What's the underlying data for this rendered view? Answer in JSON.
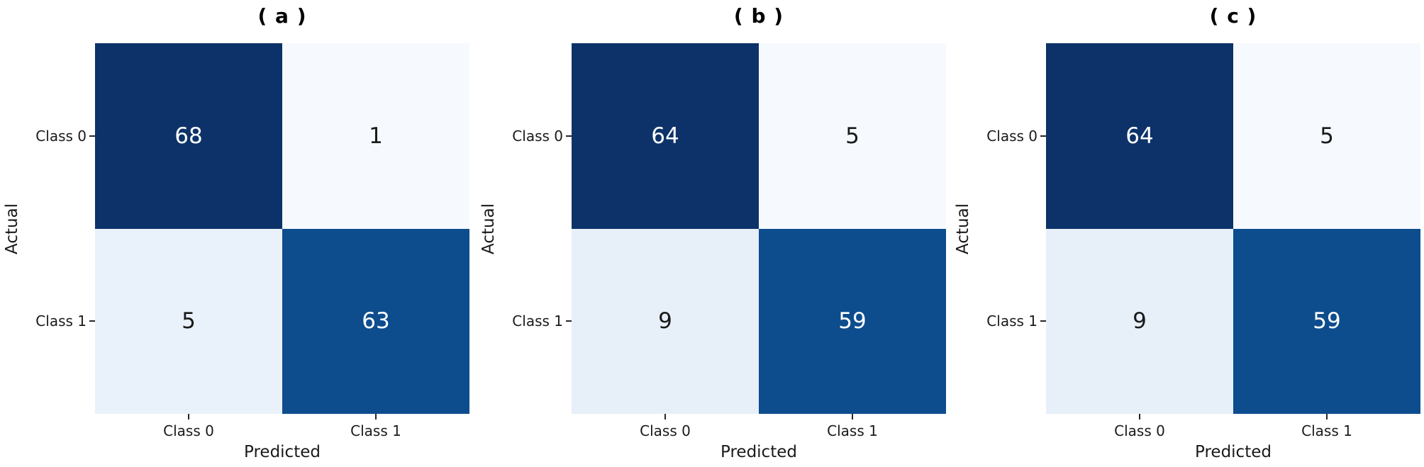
{
  "figure": {
    "background": "#ffffff",
    "colormap": "Blues",
    "color_dark": "#0d3269",
    "color_medium": "#0d4d8e",
    "color_lightest": "#f6fafe"
  },
  "chart_data": [
    {
      "type": "heatmap",
      "title": "( a )",
      "xlabel": "Predicted",
      "ylabel": "Actual",
      "x_categories": [
        "Class 0",
        "Class 1"
      ],
      "y_categories": [
        "Class 0",
        "Class 1"
      ],
      "values": [
        [
          68,
          1
        ],
        [
          5,
          63
        ]
      ],
      "colormap": "Blues",
      "legend": "none",
      "grid": false,
      "cell_colors": [
        [
          "#0d3269",
          "#f6fafe"
        ],
        [
          "#e9f1fa",
          "#0d4d8e"
        ]
      ],
      "value_colors": [
        [
          "#ffffff",
          "#1a1a1a"
        ],
        [
          "#1a1a1a",
          "#ffffff"
        ]
      ]
    },
    {
      "type": "heatmap",
      "title": "( b )",
      "xlabel": "Predicted",
      "ylabel": "Actual",
      "x_categories": [
        "Class 0",
        "Class 1"
      ],
      "y_categories": [
        "Class 0",
        "Class 1"
      ],
      "values": [
        [
          64,
          5
        ],
        [
          9,
          59
        ]
      ],
      "colormap": "Blues",
      "legend": "none",
      "grid": false,
      "cell_colors": [
        [
          "#0d3269",
          "#f6fafe"
        ],
        [
          "#e7eff8",
          "#0d4d8e"
        ]
      ],
      "value_colors": [
        [
          "#ffffff",
          "#1a1a1a"
        ],
        [
          "#1a1a1a",
          "#ffffff"
        ]
      ]
    },
    {
      "type": "heatmap",
      "title": "( c )",
      "xlabel": "Predicted",
      "ylabel": "Actual",
      "x_categories": [
        "Class 0",
        "Class 1"
      ],
      "y_categories": [
        "Class 0",
        "Class 1"
      ],
      "values": [
        [
          64,
          5
        ],
        [
          9,
          59
        ]
      ],
      "colormap": "Blues",
      "legend": "none",
      "grid": false,
      "cell_colors": [
        [
          "#0d3269",
          "#f6fafe"
        ],
        [
          "#e7eff8",
          "#0d4d8e"
        ]
      ],
      "value_colors": [
        [
          "#ffffff",
          "#1a1a1a"
        ],
        [
          "#1a1a1a",
          "#ffffff"
        ]
      ]
    }
  ]
}
